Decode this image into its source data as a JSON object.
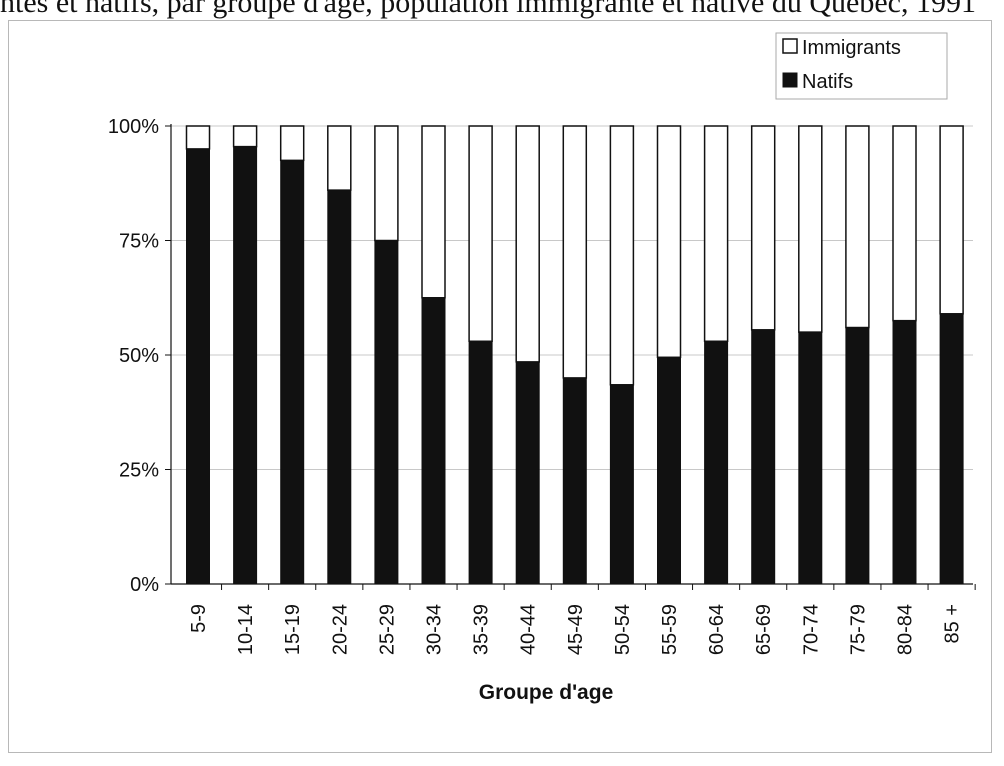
{
  "caption": "ntés et natifs, par groupe d'âge, population immigrante et native du Québec, 1991",
  "chart_data": {
    "type": "bar",
    "stacked": true,
    "categories": [
      "5-9",
      "10-14",
      "15-19",
      "20-24",
      "25-29",
      "30-34",
      "35-39",
      "40-44",
      "45-49",
      "50-54",
      "55-59",
      "60-64",
      "65-69",
      "70-74",
      "75-79",
      "80-84",
      "85 +"
    ],
    "series": [
      {
        "name": "Natifs",
        "color": "#111111",
        "values": [
          95,
          95.5,
          92.5,
          86,
          75,
          62.5,
          53,
          48.5,
          45,
          43.5,
          49.5,
          53,
          55.5,
          55,
          56,
          57.5,
          59
        ]
      },
      {
        "name": "Immigrants",
        "color": "#ffffff",
        "values": [
          5,
          4.5,
          7.5,
          14,
          25,
          37.5,
          47,
          51.5,
          55,
          56.5,
          50.5,
          47,
          44.5,
          45,
          44,
          42.5,
          41
        ]
      }
    ],
    "ylim": [
      0,
      100
    ],
    "yticks": [
      "0%",
      "25%",
      "50%",
      "75%",
      "100%"
    ],
    "ytick_values": [
      0,
      25,
      50,
      75,
      100
    ],
    "xlabel": "Groupe  d'age",
    "ylabel": "",
    "legend": [
      "Immigrants",
      "Natifs"
    ],
    "legend_position": "top-right",
    "grid": "horizontal"
  }
}
